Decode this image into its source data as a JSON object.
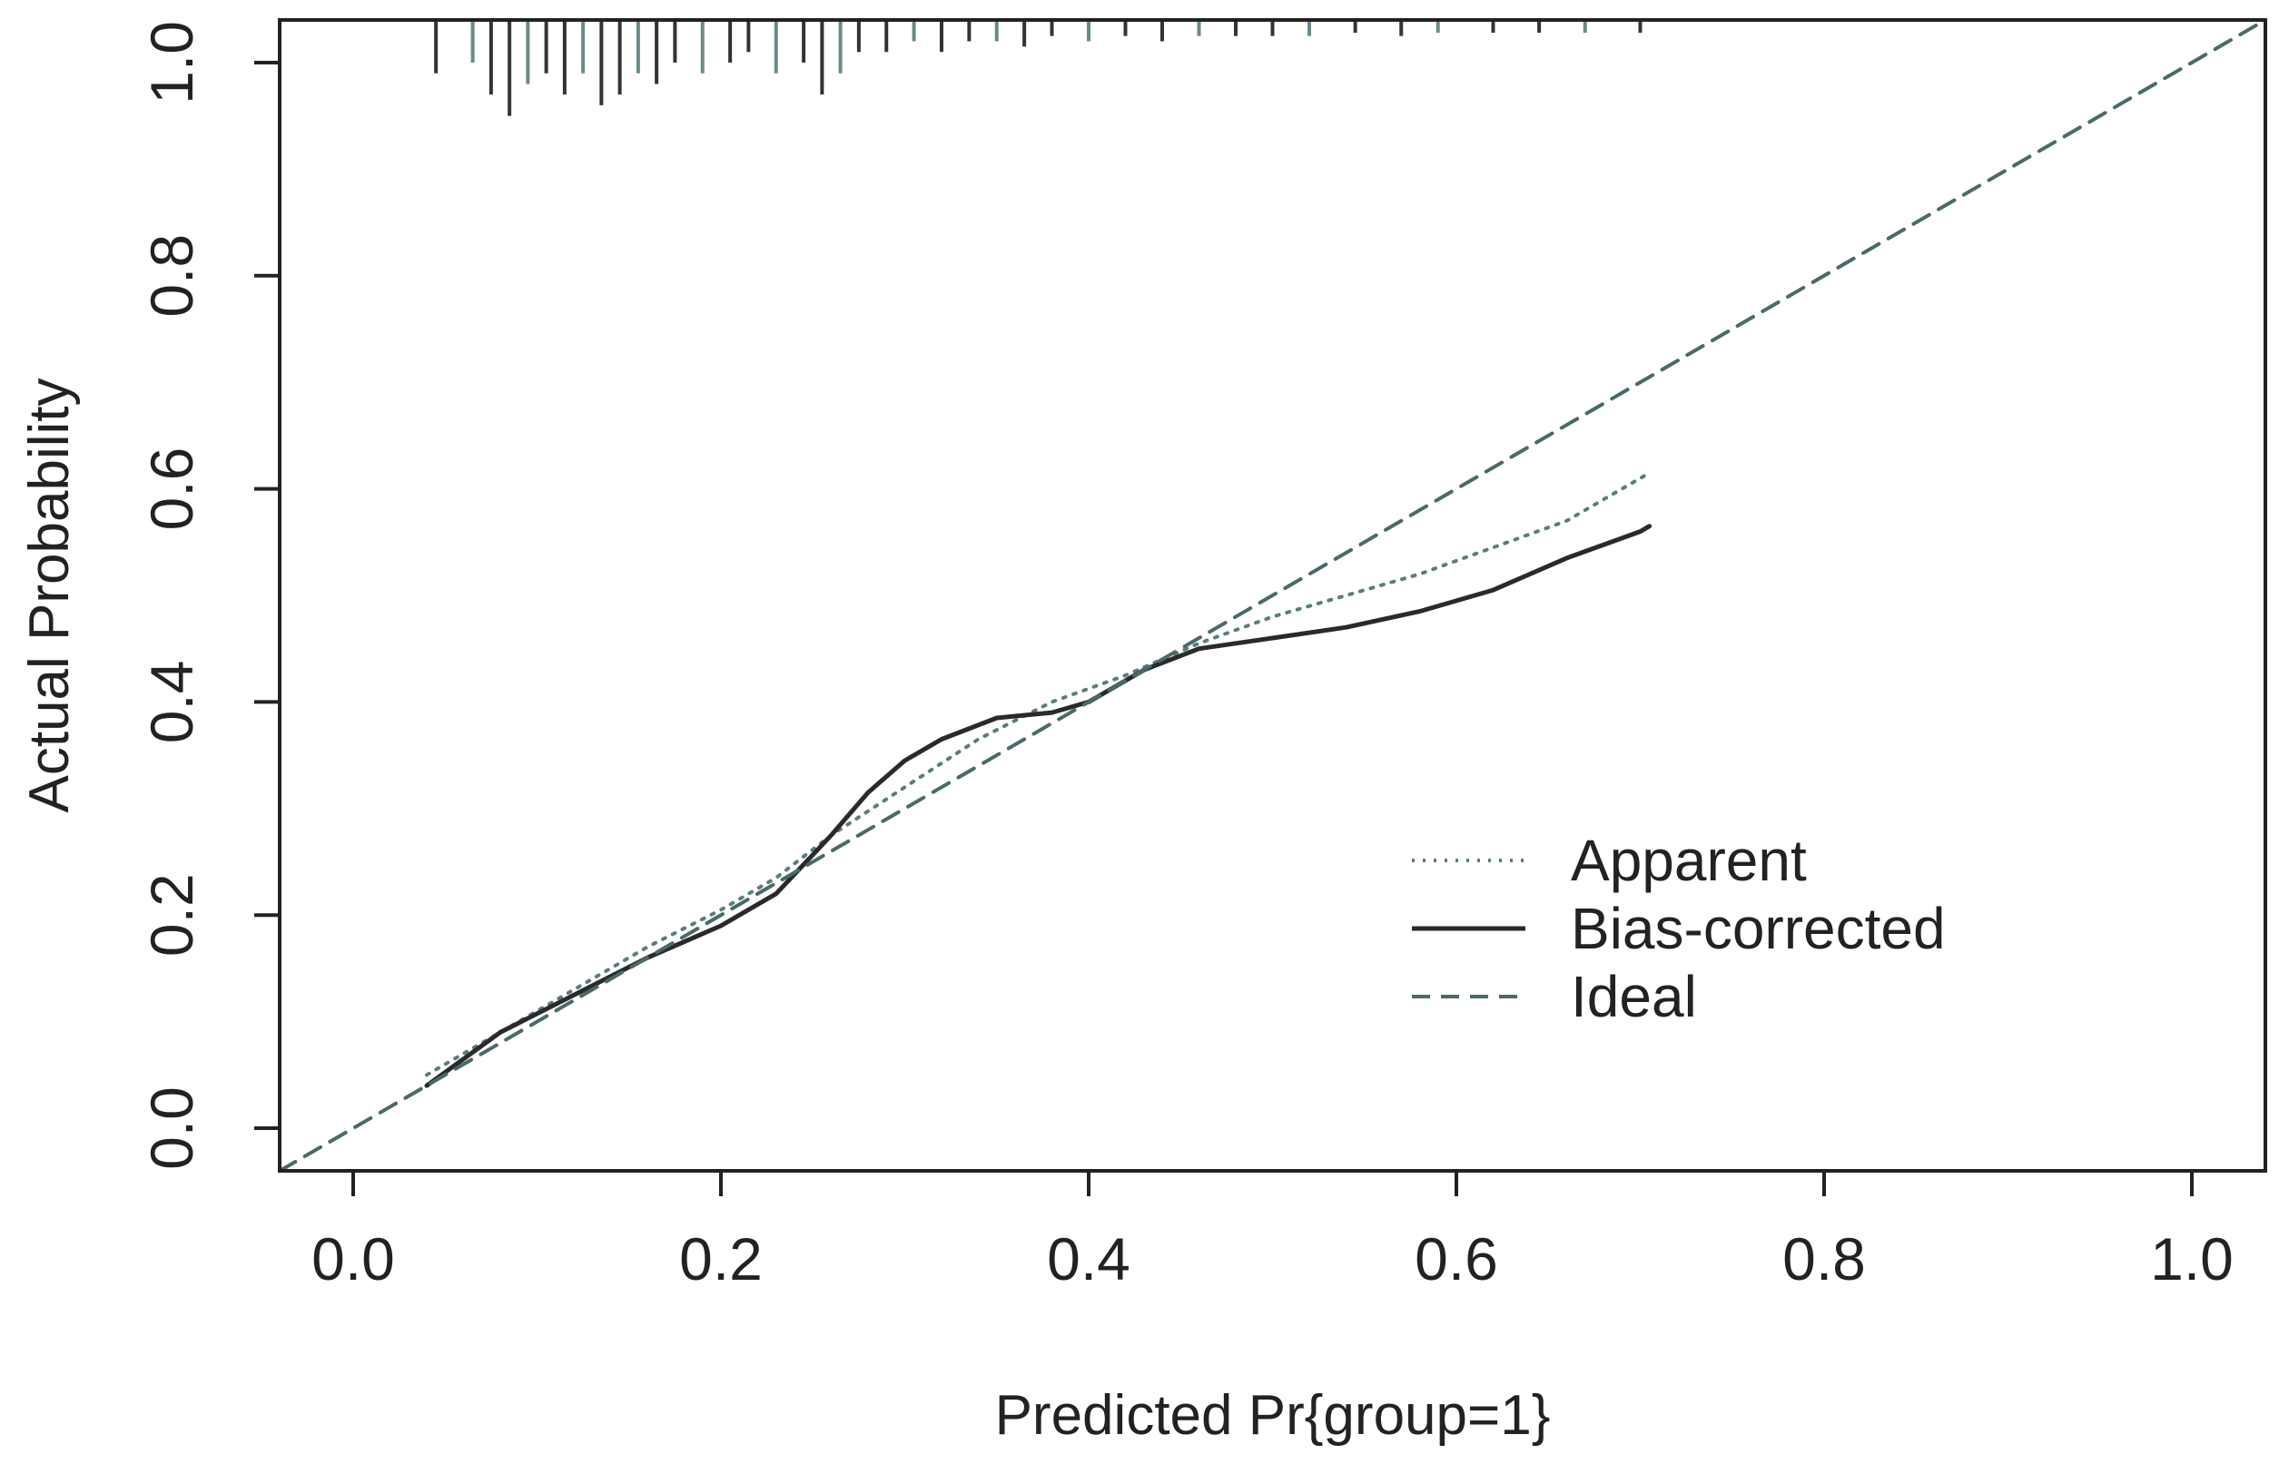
{
  "chart_data": {
    "type": "line",
    "title": "",
    "xlabel": "Predicted Pr{group=1}",
    "ylabel": "Actual Probability",
    "xlim": [
      -0.04,
      1.04
    ],
    "ylim": [
      -0.04,
      1.04
    ],
    "x_ticks": [
      "0.0",
      "0.2",
      "0.4",
      "0.6",
      "0.8",
      "1.0"
    ],
    "y_ticks": [
      "0.0",
      "0.2",
      "0.4",
      "0.6",
      "0.8",
      "1.0"
    ],
    "grid": false,
    "legend_position": "bottom-right",
    "series": [
      {
        "name": "Apparent",
        "line_style": "dotted",
        "x": [
          0.04,
          0.08,
          0.12,
          0.16,
          0.2,
          0.23,
          0.26,
          0.3,
          0.34,
          0.38,
          0.42,
          0.46,
          0.5,
          0.54,
          0.58,
          0.62,
          0.66,
          0.7,
          0.705
        ],
        "y": [
          0.05,
          0.09,
          0.13,
          0.17,
          0.205,
          0.235,
          0.275,
          0.32,
          0.365,
          0.4,
          0.425,
          0.455,
          0.48,
          0.5,
          0.52,
          0.545,
          0.57,
          0.61,
          0.615
        ]
      },
      {
        "name": "Bias-corrected",
        "line_style": "solid",
        "x": [
          0.04,
          0.08,
          0.12,
          0.16,
          0.2,
          0.23,
          0.26,
          0.28,
          0.3,
          0.32,
          0.35,
          0.38,
          0.4,
          0.43,
          0.46,
          0.5,
          0.54,
          0.58,
          0.62,
          0.66,
          0.7,
          0.705
        ],
        "y": [
          0.04,
          0.09,
          0.125,
          0.16,
          0.19,
          0.22,
          0.275,
          0.315,
          0.345,
          0.365,
          0.385,
          0.39,
          0.4,
          0.43,
          0.45,
          0.46,
          0.47,
          0.485,
          0.505,
          0.535,
          0.56,
          0.565
        ]
      },
      {
        "name": "Ideal",
        "line_style": "dashed",
        "x": [
          -0.04,
          1.04
        ],
        "y": [
          -0.04,
          1.04
        ]
      }
    ],
    "rug_top": [
      0.045,
      0.065,
      0.075,
      0.085,
      0.095,
      0.105,
      0.115,
      0.125,
      0.135,
      0.145,
      0.155,
      0.165,
      0.175,
      0.19,
      0.205,
      0.215,
      0.23,
      0.245,
      0.255,
      0.265,
      0.275,
      0.29,
      0.305,
      0.32,
      0.335,
      0.35,
      0.365,
      0.38,
      0.4,
      0.42,
      0.44,
      0.46,
      0.48,
      0.5,
      0.52,
      0.545,
      0.57,
      0.59,
      0.62,
      0.645,
      0.67,
      0.7
    ],
    "rug_top_lengths": [
      0.05,
      0.04,
      0.07,
      0.09,
      0.06,
      0.05,
      0.07,
      0.05,
      0.08,
      0.07,
      0.05,
      0.06,
      0.04,
      0.05,
      0.04,
      0.03,
      0.05,
      0.04,
      0.07,
      0.05,
      0.03,
      0.03,
      0.02,
      0.03,
      0.02,
      0.02,
      0.025,
      0.015,
      0.02,
      0.015,
      0.02,
      0.015,
      0.015,
      0.015,
      0.015,
      0.012,
      0.015,
      0.012,
      0.012,
      0.012,
      0.012,
      0.012
    ]
  }
}
